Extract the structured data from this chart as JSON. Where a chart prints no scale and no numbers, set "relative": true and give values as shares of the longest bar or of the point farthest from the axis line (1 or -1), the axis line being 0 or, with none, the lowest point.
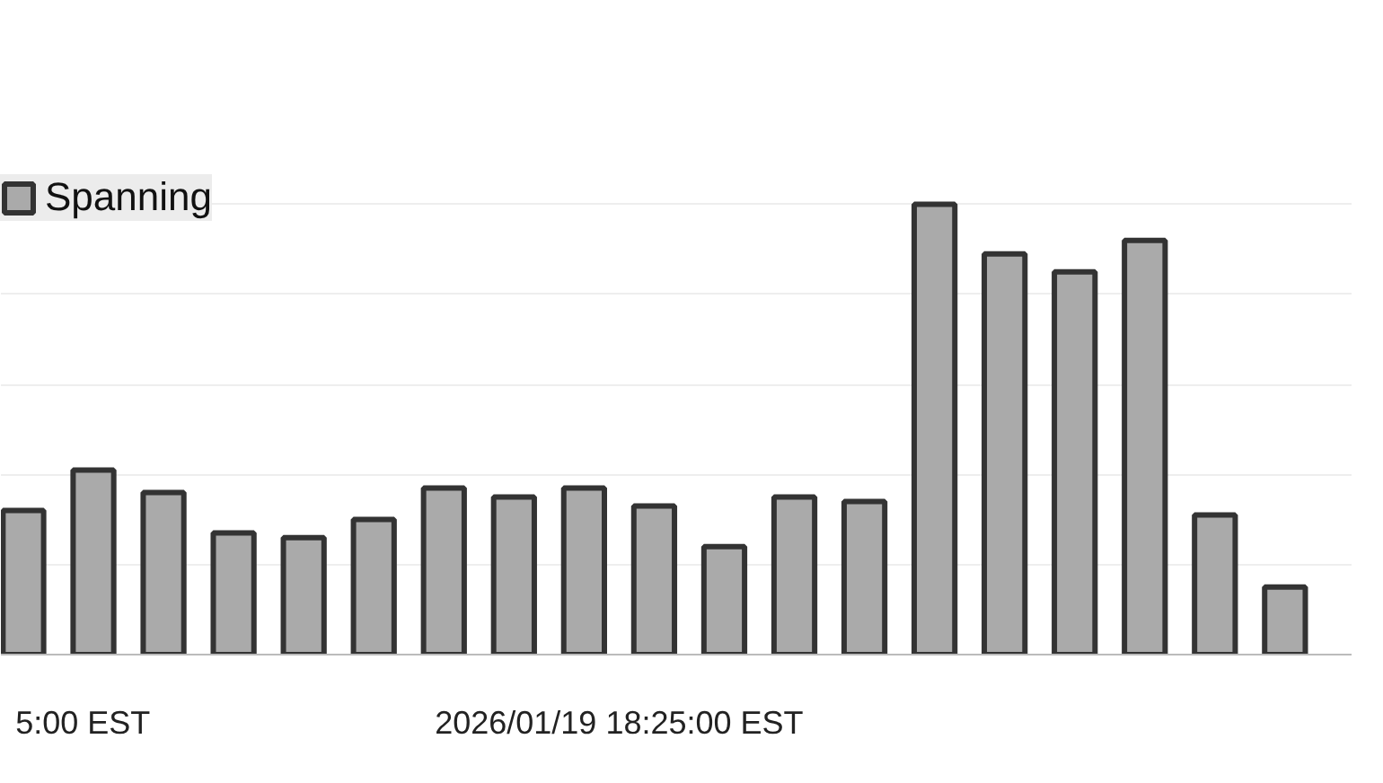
{
  "chart_data": {
    "type": "bar",
    "relative": true,
    "categories": [
      null,
      null,
      null,
      null,
      null,
      null,
      null,
      null,
      null,
      null,
      null,
      null,
      null,
      null,
      null,
      null,
      null,
      null,
      null
    ],
    "series": [
      {
        "name": "Spanning",
        "color": "#aaaaaa",
        "values": [
          0.32,
          0.41,
          0.36,
          0.27,
          0.26,
          0.3,
          0.37,
          0.35,
          0.37,
          0.33,
          0.24,
          0.35,
          0.34,
          1,
          0.89,
          0.85,
          0.92,
          0.31,
          0.15
        ]
      }
    ],
    "annotations": [
      "5:00 EST",
      "2026/01/19 18:25:00 EST"
    ],
    "legend": "top left",
    "grid": "y"
  }
}
